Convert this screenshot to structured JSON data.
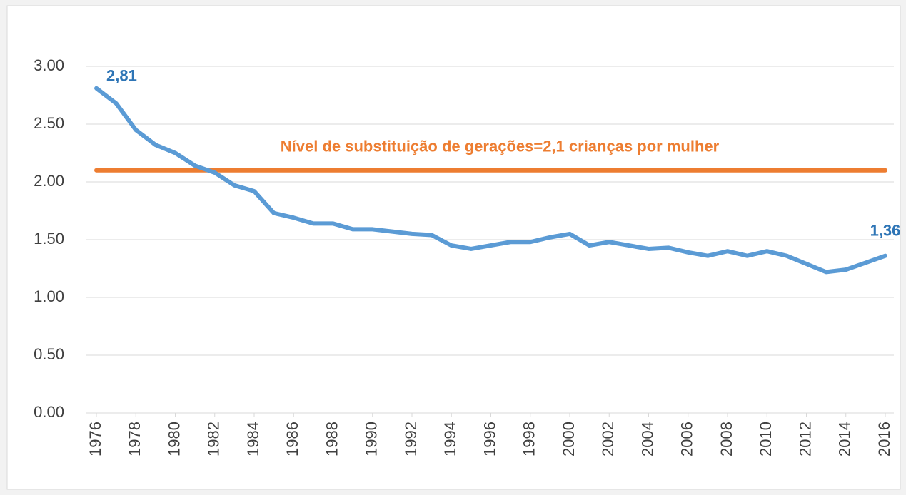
{
  "chart_data": {
    "type": "line",
    "x": [
      1976,
      1977,
      1978,
      1979,
      1980,
      1981,
      1982,
      1983,
      1984,
      1985,
      1986,
      1987,
      1988,
      1989,
      1990,
      1991,
      1992,
      1993,
      1994,
      1995,
      1996,
      1997,
      1998,
      1999,
      2000,
      2001,
      2002,
      2003,
      2004,
      2005,
      2006,
      2007,
      2008,
      2009,
      2010,
      2011,
      2012,
      2013,
      2014,
      2015,
      2016
    ],
    "series": [
      {
        "color": "#5b9bd5",
        "values": [
          2.81,
          2.68,
          2.45,
          2.32,
          2.25,
          2.14,
          2.08,
          1.97,
          1.92,
          1.73,
          1.69,
          1.64,
          1.64,
          1.59,
          1.59,
          1.57,
          1.55,
          1.54,
          1.45,
          1.42,
          1.45,
          1.48,
          1.48,
          1.52,
          1.55,
          1.45,
          1.48,
          1.45,
          1.42,
          1.43,
          1.39,
          1.36,
          1.4,
          1.36,
          1.4,
          1.36,
          1.29,
          1.22,
          1.24,
          1.3,
          1.36
        ],
        "value_labels": [
          "2,81",
          null,
          null,
          null,
          null,
          null,
          null,
          null,
          null,
          null,
          null,
          null,
          null,
          null,
          null,
          null,
          null,
          null,
          null,
          null,
          null,
          null,
          null,
          null,
          null,
          null,
          null,
          null,
          null,
          null,
          null,
          null,
          null,
          null,
          null,
          null,
          null,
          null,
          null,
          null,
          "1,36"
        ],
        "label_color": "#2e75b6"
      }
    ],
    "reference_line": {
      "value": 2.1,
      "label": "Nível de substituição de gerações=2,1 crianças por mulher",
      "color": "#ed7d31"
    },
    "xlim": [
      1976,
      2016
    ],
    "xticks": [
      1976,
      1978,
      1980,
      1982,
      1984,
      1986,
      1988,
      1990,
      1992,
      1994,
      1996,
      1998,
      2000,
      2002,
      2004,
      2006,
      2008,
      2010,
      2012,
      2014,
      2016
    ],
    "ylim": [
      0,
      3
    ],
    "yticks": [
      {
        "value": 0,
        "label": "0.00"
      },
      {
        "value": 0.5,
        "label": "0.50"
      },
      {
        "value": 1,
        "label": "1.00"
      },
      {
        "value": 1.5,
        "label": "1.50"
      },
      {
        "value": 2,
        "label": "2.00"
      },
      {
        "value": 2.5,
        "label": "2.50"
      },
      {
        "value": 3,
        "label": "3.00"
      }
    ],
    "grid": true
  }
}
